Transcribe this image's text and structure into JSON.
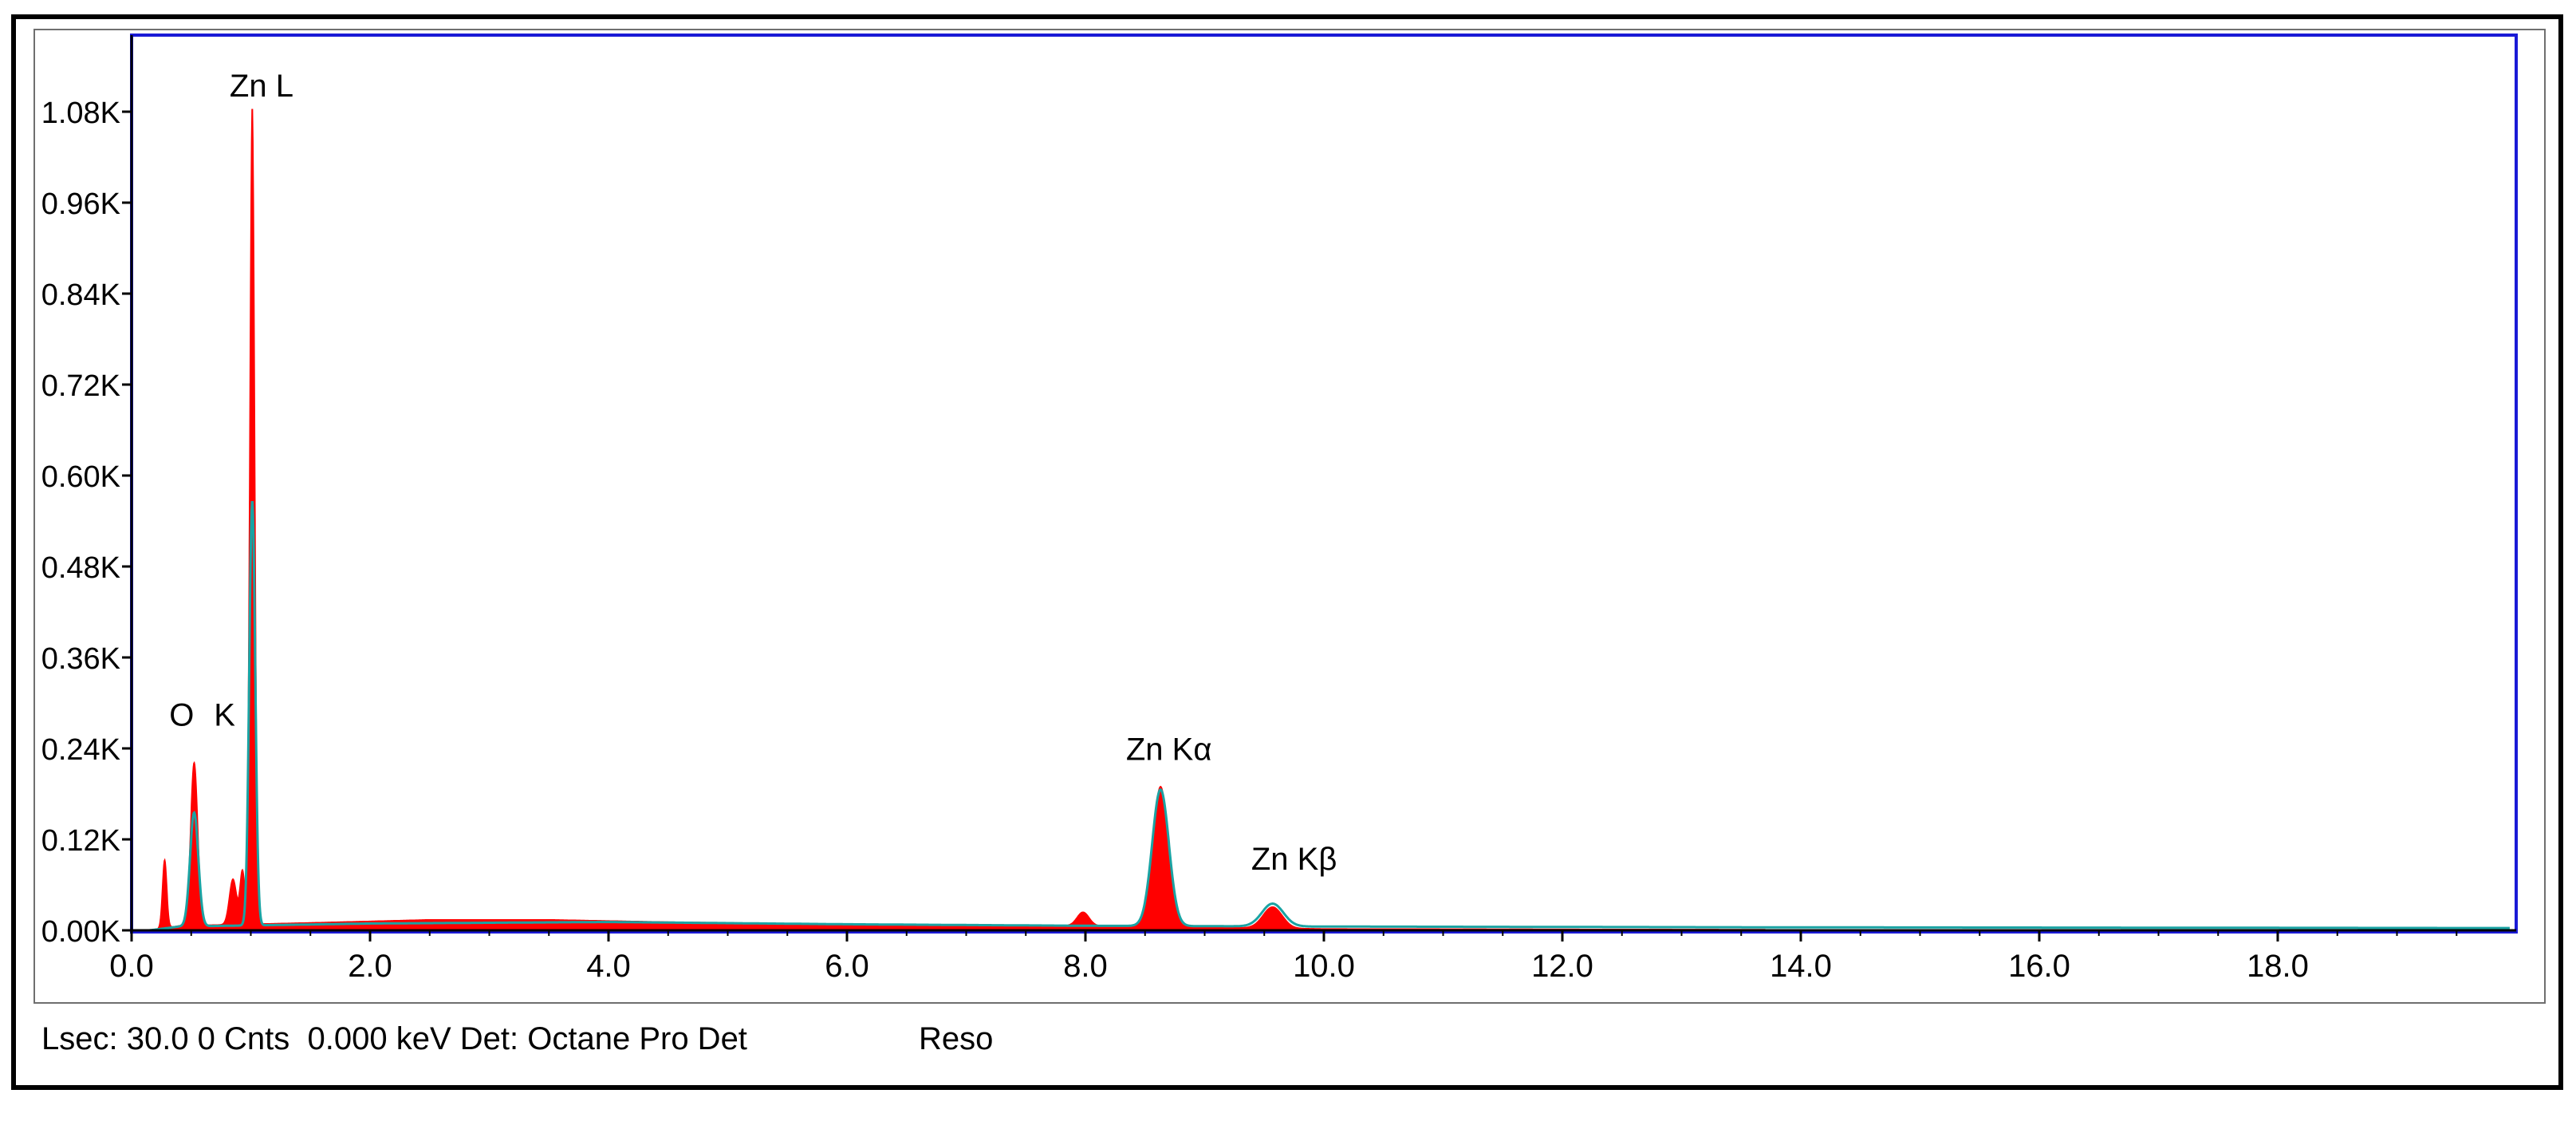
{
  "chart_data": {
    "type": "line",
    "x_axis": {
      "min": 0,
      "max": 20,
      "ticks": [
        0,
        2,
        4,
        6,
        8,
        10,
        12,
        14,
        16,
        18
      ],
      "tick_labels": [
        "0.0",
        "2.0",
        "4.0",
        "6.0",
        "8.0",
        "10.0",
        "12.0",
        "14.0",
        "16.0",
        "18.0"
      ]
    },
    "y_axis": {
      "min": 0,
      "max": 1120,
      "ticks": [
        0,
        120,
        240,
        360,
        480,
        600,
        720,
        840,
        960,
        1080
      ],
      "tick_labels": [
        "0.00K",
        "0.12K",
        "0.24K",
        "0.36K",
        "0.48K",
        "0.60K",
        "0.72K",
        "0.84K",
        "0.96K",
        "1.08K"
      ]
    },
    "grid": false,
    "series": [
      {
        "color": "#ff0000",
        "style": "filled spectrum",
        "peaks": [
          {
            "x": 0.277,
            "y": 90,
            "sigma": 0.018
          },
          {
            "x": 0.525,
            "y": 215,
            "sigma": 0.03
          },
          {
            "x": 0.85,
            "y": 60,
            "sigma": 0.03
          },
          {
            "x": 0.93,
            "y": 70,
            "sigma": 0.02
          },
          {
            "x": 1.012,
            "y": 1080,
            "sigma": 0.02
          },
          {
            "x": 7.98,
            "y": 18,
            "sigma": 0.05
          },
          {
            "x": 8.63,
            "y": 185,
            "sigma": 0.065
          },
          {
            "x": 9.57,
            "y": 28,
            "sigma": 0.08
          }
        ],
        "background": [
          [
            0.15,
            0
          ],
          [
            0.4,
            6
          ],
          [
            1.5,
            10
          ],
          [
            2.5,
            14
          ],
          [
            3.5,
            14
          ],
          [
            4.5,
            11
          ],
          [
            6.0,
            8
          ],
          [
            8.0,
            6
          ],
          [
            10.0,
            2
          ],
          [
            13.7,
            1
          ],
          [
            20.0,
            0
          ]
        ]
      },
      {
        "color": "#1aa3a3",
        "style": "fit line",
        "peaks": [
          {
            "x": 0.525,
            "y": 150,
            "sigma": 0.035
          },
          {
            "x": 1.012,
            "y": 560,
            "sigma": 0.025
          },
          {
            "x": 8.63,
            "y": 180,
            "sigma": 0.07
          },
          {
            "x": 9.57,
            "y": 30,
            "sigma": 0.09
          }
        ],
        "background": [
          [
            0.15,
            0
          ],
          [
            0.4,
            5
          ],
          [
            2.0,
            9
          ],
          [
            4.0,
            11
          ],
          [
            6.0,
            8
          ],
          [
            8.0,
            6
          ],
          [
            10.0,
            5
          ],
          [
            13.7,
            4
          ],
          [
            20.0,
            3
          ]
        ]
      }
    ],
    "annotations": [
      {
        "text": "Zn L",
        "x": 1.09,
        "y": 1100
      },
      {
        "text": "O",
        "x": 0.42,
        "y": 270
      },
      {
        "text": "K",
        "x": 0.78,
        "y": 270
      },
      {
        "text": "Zn Kα",
        "x": 8.7,
        "y": 225
      },
      {
        "text": "Zn Kβ",
        "x": 9.75,
        "y": 80
      }
    ]
  },
  "colors": {
    "plot_border": "#1a1ad6",
    "axis": "#000000",
    "spectrum": "#ff0000",
    "fit": "#1aa3a3",
    "outer_frame": "#000000"
  },
  "status": {
    "left_text": "Lsec: 30.0 0 Cnts  0.000 keV Det: Octane Pro Det",
    "reso_text": "Reso"
  }
}
